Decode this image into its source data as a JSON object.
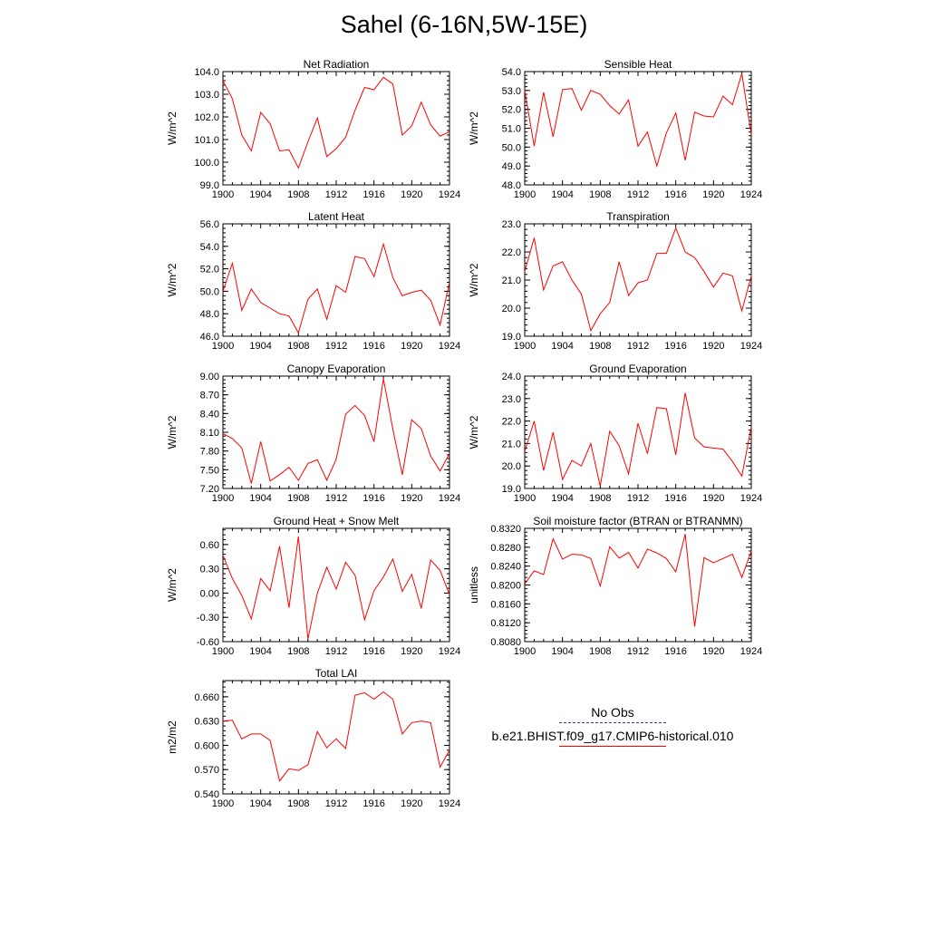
{
  "title": "Sahel (6-16N,5W-15E)",
  "legend": {
    "obs_label": "No Obs",
    "model_label": "b.e21.BHIST.f09_g17.CMIP6-historical.010",
    "obs_color": "#3a3a9a",
    "model_color": "#ff0000"
  },
  "chart_data": [
    {
      "type": "line",
      "title": "Net Radiation",
      "ylabel": "W/m^2",
      "xlabel": "",
      "xlim": [
        1900,
        1924
      ],
      "ylim": [
        99.0,
        104.0
      ],
      "x_ticks": [
        "1900",
        "1904",
        "1908",
        "1912",
        "1916",
        "1920",
        "1924"
      ],
      "y_ticks": [
        "99.0",
        "100.0",
        "101.0",
        "102.0",
        "103.0",
        "104.0"
      ],
      "x": [
        1900,
        1901,
        1902,
        1903,
        1904,
        1905,
        1906,
        1907,
        1908,
        1909,
        1910,
        1911,
        1912,
        1913,
        1914,
        1915,
        1916,
        1917,
        1918,
        1919,
        1920,
        1921,
        1922,
        1923,
        1924
      ],
      "series": [
        {
          "values": [
            103.6,
            102.8,
            101.2,
            100.5,
            102.2,
            101.7,
            100.5,
            100.55,
            99.75,
            100.9,
            101.95,
            100.25,
            100.6,
            101.1,
            102.3,
            103.3,
            103.2,
            103.75,
            103.45,
            101.2,
            101.6,
            102.65,
            101.65,
            101.15,
            101.35
          ]
        }
      ]
    },
    {
      "type": "line",
      "title": "Sensible Heat",
      "ylabel": "W/m^2",
      "xlabel": "",
      "xlim": [
        1900,
        1924
      ],
      "ylim": [
        48.0,
        54.0
      ],
      "x_ticks": [
        "1900",
        "1904",
        "1908",
        "1912",
        "1916",
        "1920",
        "1924"
      ],
      "y_ticks": [
        "48.0",
        "49.0",
        "50.0",
        "51.0",
        "52.0",
        "53.0",
        "54.0"
      ],
      "x": [
        1900,
        1901,
        1902,
        1903,
        1904,
        1905,
        1906,
        1907,
        1908,
        1909,
        1910,
        1911,
        1912,
        1913,
        1914,
        1915,
        1916,
        1917,
        1918,
        1919,
        1920,
        1921,
        1922,
        1923,
        1924
      ],
      "series": [
        {
          "values": [
            53.0,
            50.05,
            52.9,
            50.55,
            53.05,
            53.1,
            51.95,
            53.0,
            52.8,
            52.2,
            51.75,
            52.5,
            50.05,
            50.8,
            49.0,
            50.75,
            51.8,
            49.3,
            51.85,
            51.65,
            51.6,
            52.7,
            52.25,
            53.9,
            50.65
          ]
        }
      ]
    },
    {
      "type": "line",
      "title": "Latent Heat",
      "ylabel": "W/m^2",
      "xlabel": "",
      "xlim": [
        1900,
        1924
      ],
      "ylim": [
        46.0,
        56.0
      ],
      "x_ticks": [
        "1900",
        "1904",
        "1908",
        "1912",
        "1916",
        "1920",
        "1924"
      ],
      "y_ticks": [
        "46.0",
        "48.0",
        "50.0",
        "52.0",
        "54.0",
        "56.0"
      ],
      "x": [
        1900,
        1901,
        1902,
        1903,
        1904,
        1905,
        1906,
        1907,
        1908,
        1909,
        1910,
        1911,
        1912,
        1913,
        1914,
        1915,
        1916,
        1917,
        1918,
        1919,
        1920,
        1921,
        1922,
        1923,
        1924
      ],
      "series": [
        {
          "values": [
            50.0,
            52.5,
            48.3,
            50.2,
            49.0,
            48.5,
            48.0,
            47.8,
            46.3,
            49.3,
            50.2,
            47.5,
            50.5,
            49.9,
            53.1,
            52.9,
            51.3,
            54.2,
            51.2,
            49.6,
            49.9,
            50.1,
            49.2,
            47.0,
            50.8
          ]
        }
      ]
    },
    {
      "type": "line",
      "title": "Transpiration",
      "ylabel": "W/m^2",
      "xlabel": "",
      "xlim": [
        1900,
        1924
      ],
      "ylim": [
        19.0,
        23.0
      ],
      "x_ticks": [
        "1900",
        "1904",
        "1908",
        "1912",
        "1916",
        "1920",
        "1924"
      ],
      "y_ticks": [
        "19.0",
        "20.0",
        "21.0",
        "22.0",
        "23.0"
      ],
      "x": [
        1900,
        1901,
        1902,
        1903,
        1904,
        1905,
        1906,
        1907,
        1908,
        1909,
        1910,
        1911,
        1912,
        1913,
        1914,
        1915,
        1916,
        1917,
        1918,
        1919,
        1920,
        1921,
        1922,
        1923,
        1924
      ],
      "series": [
        {
          "values": [
            21.3,
            22.5,
            20.65,
            21.5,
            21.65,
            21.0,
            20.5,
            19.2,
            19.8,
            20.2,
            21.65,
            20.45,
            20.9,
            21.0,
            21.95,
            21.95,
            22.85,
            22.0,
            21.8,
            21.3,
            20.75,
            21.25,
            21.15,
            19.9,
            21.15
          ]
        }
      ]
    },
    {
      "type": "line",
      "title": "Canopy Evaporation",
      "ylabel": "W/m^2",
      "xlabel": "",
      "xlim": [
        1900,
        1924
      ],
      "ylim": [
        7.2,
        9.0
      ],
      "x_ticks": [
        "1900",
        "1904",
        "1908",
        "1912",
        "1916",
        "1920",
        "1924"
      ],
      "y_ticks": [
        "7.20",
        "7.50",
        "7.80",
        "8.10",
        "8.40",
        "8.70",
        "9.00"
      ],
      "x": [
        1900,
        1901,
        1902,
        1903,
        1904,
        1905,
        1906,
        1907,
        1908,
        1909,
        1910,
        1911,
        1912,
        1913,
        1914,
        1915,
        1916,
        1917,
        1918,
        1919,
        1920,
        1921,
        1922,
        1923,
        1924
      ],
      "series": [
        {
          "values": [
            8.08,
            8.0,
            7.85,
            7.28,
            7.95,
            7.32,
            7.42,
            7.54,
            7.33,
            7.6,
            7.66,
            7.33,
            7.67,
            8.39,
            8.53,
            8.37,
            7.95,
            8.96,
            8.15,
            7.42,
            8.3,
            8.16,
            7.72,
            7.48,
            7.76
          ]
        }
      ]
    },
    {
      "type": "line",
      "title": "Ground Evaporation",
      "ylabel": "W/m^2",
      "xlabel": "",
      "xlim": [
        1900,
        1924
      ],
      "ylim": [
        19.0,
        24.0
      ],
      "x_ticks": [
        "1900",
        "1904",
        "1908",
        "1912",
        "1916",
        "1920",
        "1924"
      ],
      "y_ticks": [
        "19.0",
        "20.0",
        "21.0",
        "22.0",
        "23.0",
        "24.0"
      ],
      "x": [
        1900,
        1901,
        1902,
        1903,
        1904,
        1905,
        1906,
        1907,
        1908,
        1909,
        1910,
        1911,
        1912,
        1913,
        1914,
        1915,
        1916,
        1917,
        1918,
        1919,
        1920,
        1921,
        1922,
        1923,
        1924
      ],
      "series": [
        {
          "values": [
            20.65,
            22.0,
            19.8,
            21.5,
            19.4,
            20.25,
            20.0,
            21.0,
            19.1,
            21.55,
            20.9,
            19.65,
            21.9,
            20.55,
            22.6,
            22.55,
            20.5,
            23.25,
            21.25,
            20.85,
            20.8,
            20.75,
            20.2,
            19.55,
            21.75
          ]
        }
      ]
    },
    {
      "type": "line",
      "title": "Ground Heat + Snow Melt",
      "ylabel": "W/m^2",
      "xlabel": "",
      "xlim": [
        1900,
        1924
      ],
      "ylim": [
        -0.6,
        0.8
      ],
      "x_ticks": [
        "1900",
        "1904",
        "1908",
        "1912",
        "1916",
        "1920",
        "1924"
      ],
      "y_ticks": [
        "-0.60",
        "-0.30",
        "0.00",
        "0.30",
        "0.60"
      ],
      "x": [
        1900,
        1901,
        1902,
        1903,
        1904,
        1905,
        1906,
        1907,
        1908,
        1909,
        1910,
        1911,
        1912,
        1913,
        1914,
        1915,
        1916,
        1917,
        1918,
        1919,
        1920,
        1921,
        1922,
        1923,
        1924
      ],
      "series": [
        {
          "values": [
            0.47,
            0.18,
            -0.03,
            -0.32,
            0.18,
            0.03,
            0.58,
            -0.18,
            0.7,
            -0.57,
            0.0,
            0.32,
            0.05,
            0.38,
            0.22,
            -0.33,
            0.03,
            0.2,
            0.42,
            0.02,
            0.23,
            -0.19,
            0.41,
            0.28,
            -0.02
          ]
        }
      ]
    },
    {
      "type": "line",
      "title": "Soil moisture factor (BTRAN or BTRANMN)",
      "ylabel": "unitless",
      "xlabel": "",
      "xlim": [
        1900,
        1924
      ],
      "ylim": [
        0.808,
        0.832
      ],
      "x_ticks": [
        "1900",
        "1904",
        "1908",
        "1912",
        "1916",
        "1920",
        "1924"
      ],
      "y_ticks": [
        "0.8080",
        "0.8120",
        "0.8160",
        "0.8200",
        "0.8240",
        "0.8280",
        "0.8320"
      ],
      "x": [
        1900,
        1901,
        1902,
        1903,
        1904,
        1905,
        1906,
        1907,
        1908,
        1909,
        1910,
        1911,
        1912,
        1913,
        1914,
        1915,
        1916,
        1917,
        1918,
        1919,
        1920,
        1921,
        1922,
        1923,
        1924
      ],
      "series": [
        {
          "values": [
            0.8202,
            0.823,
            0.8222,
            0.8298,
            0.8255,
            0.8265,
            0.8264,
            0.8256,
            0.8198,
            0.8281,
            0.8257,
            0.8269,
            0.8236,
            0.8276,
            0.8268,
            0.8256,
            0.8228,
            0.8308,
            0.8112,
            0.8258,
            0.8247,
            0.8256,
            0.8265,
            0.8216,
            0.8272
          ]
        }
      ]
    },
    {
      "type": "line",
      "title": "Total LAI",
      "ylabel": "m2/m2",
      "xlabel": "",
      "xlim": [
        1900,
        1924
      ],
      "ylim": [
        0.54,
        0.68
      ],
      "x_ticks": [
        "1900",
        "1904",
        "1908",
        "1912",
        "1916",
        "1920",
        "1924"
      ],
      "y_ticks": [
        "0.540",
        "0.570",
        "0.600",
        "0.630",
        "0.660"
      ],
      "x": [
        1900,
        1901,
        1902,
        1903,
        1904,
        1905,
        1906,
        1907,
        1908,
        1909,
        1910,
        1911,
        1912,
        1913,
        1914,
        1915,
        1916,
        1917,
        1918,
        1919,
        1920,
        1921,
        1922,
        1923,
        1924
      ],
      "series": [
        {
          "values": [
            0.63,
            0.631,
            0.608,
            0.614,
            0.614,
            0.606,
            0.556,
            0.571,
            0.569,
            0.576,
            0.617,
            0.597,
            0.608,
            0.596,
            0.662,
            0.665,
            0.657,
            0.666,
            0.657,
            0.614,
            0.628,
            0.63,
            0.628,
            0.573,
            0.594
          ]
        }
      ]
    }
  ]
}
